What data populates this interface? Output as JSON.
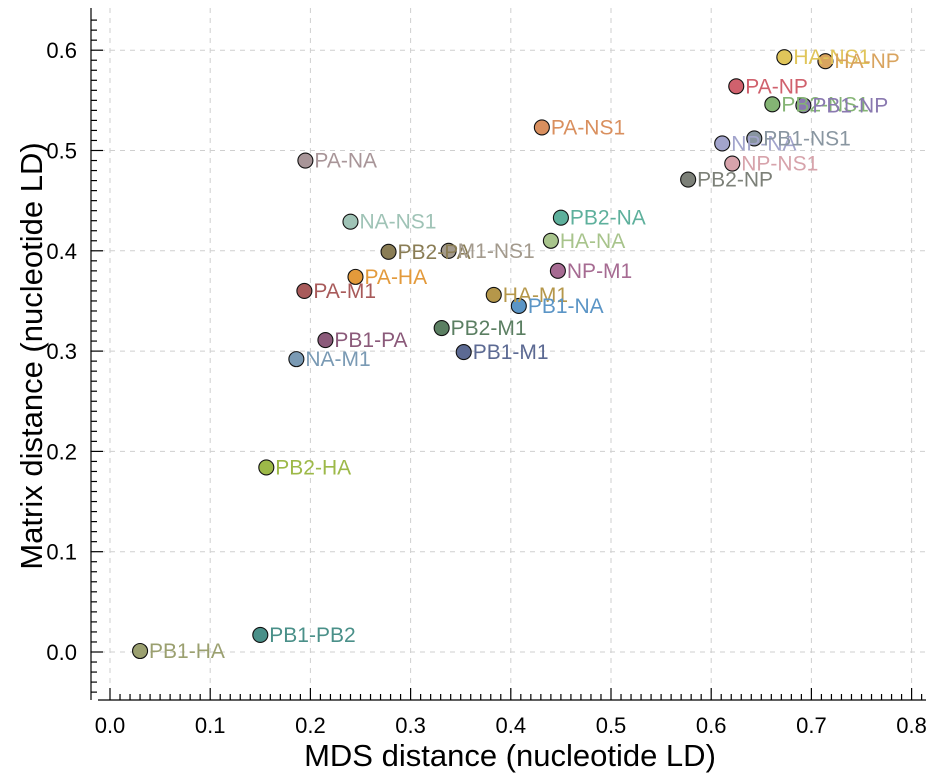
{
  "chart_data": {
    "type": "scatter",
    "title": "",
    "xlabel": "MDS distance (nucleotide LD)",
    "ylabel": "Matrix distance (nucleotide LD)",
    "xlim": [
      -0.02,
      0.81
    ],
    "ylim": [
      -0.055,
      0.64
    ],
    "xticks": [
      "0.0",
      "0.1",
      "0.2",
      "0.3",
      "0.4",
      "0.5",
      "0.6",
      "0.7",
      "0.8"
    ],
    "yticks": [
      "0.0",
      "0.1",
      "0.2",
      "0.3",
      "0.4",
      "0.5",
      "0.6"
    ],
    "grid": true,
    "points": [
      {
        "label": "PB1-HA",
        "x": 0.03,
        "y": 0.001,
        "color": "#9ba070"
      },
      {
        "label": "PB1-PB2",
        "x": 0.15,
        "y": 0.017,
        "color": "#4a9089"
      },
      {
        "label": "PB2-HA",
        "x": 0.156,
        "y": 0.184,
        "color": "#9db948"
      },
      {
        "label": "NA-M1",
        "x": 0.186,
        "y": 0.292,
        "color": "#7a9ab4"
      },
      {
        "label": "PB1-PA",
        "x": 0.215,
        "y": 0.311,
        "color": "#8b5a7a"
      },
      {
        "label": "PA-M1",
        "x": 0.194,
        "y": 0.36,
        "color": "#a85a5a"
      },
      {
        "label": "PA-HA",
        "x": 0.245,
        "y": 0.374,
        "color": "#e39a3b"
      },
      {
        "label": "PA-NA",
        "x": 0.195,
        "y": 0.49,
        "color": "#a89598"
      },
      {
        "label": "NA-NS1",
        "x": 0.24,
        "y": 0.429,
        "color": "#9fc3b6"
      },
      {
        "label": "PB2-PA",
        "x": 0.278,
        "y": 0.399,
        "color": "#8a7d55"
      },
      {
        "label": "M1-NS1",
        "x": 0.338,
        "y": 0.4,
        "color": "#a39a8d"
      },
      {
        "label": "PB2-M1",
        "x": 0.331,
        "y": 0.323,
        "color": "#5b7f62"
      },
      {
        "label": "PB1-M1",
        "x": 0.353,
        "y": 0.299,
        "color": "#5c6a93"
      },
      {
        "label": "HA-M1",
        "x": 0.383,
        "y": 0.356,
        "color": "#b5974a"
      },
      {
        "label": "PB1-NA",
        "x": 0.408,
        "y": 0.345,
        "color": "#5b95c6"
      },
      {
        "label": "PA-NS1",
        "x": 0.431,
        "y": 0.523,
        "color": "#d98f5e"
      },
      {
        "label": "PB2-NA",
        "x": 0.45,
        "y": 0.433,
        "color": "#5eb09c"
      },
      {
        "label": "HA-NA",
        "x": 0.44,
        "y": 0.41,
        "color": "#a8c48c"
      },
      {
        "label": "NP-M1",
        "x": 0.447,
        "y": 0.38,
        "color": "#a66b92"
      },
      {
        "label": "PB2-NP",
        "x": 0.577,
        "y": 0.471,
        "color": "#7c8078"
      },
      {
        "label": "NP-NA",
        "x": 0.611,
        "y": 0.507,
        "color": "#a2a4cc"
      },
      {
        "label": "NP-NS1",
        "x": 0.621,
        "y": 0.487,
        "color": "#d7a3ab"
      },
      {
        "label": "PB1-NS1",
        "x": 0.643,
        "y": 0.512,
        "color": "#8996a1"
      },
      {
        "label": "PA-NP",
        "x": 0.625,
        "y": 0.564,
        "color": "#d0616d"
      },
      {
        "label": "PB2-NS1",
        "x": 0.661,
        "y": 0.546,
        "color": "#84b474"
      },
      {
        "label": "PB1-NP",
        "x": 0.692,
        "y": 0.545,
        "color": "#8a79b0"
      },
      {
        "label": "HA-NS1",
        "x": 0.673,
        "y": 0.593,
        "color": "#e0c55a"
      },
      {
        "label": "HA-NP",
        "x": 0.714,
        "y": 0.589,
        "color": "#d9a45f"
      }
    ]
  }
}
